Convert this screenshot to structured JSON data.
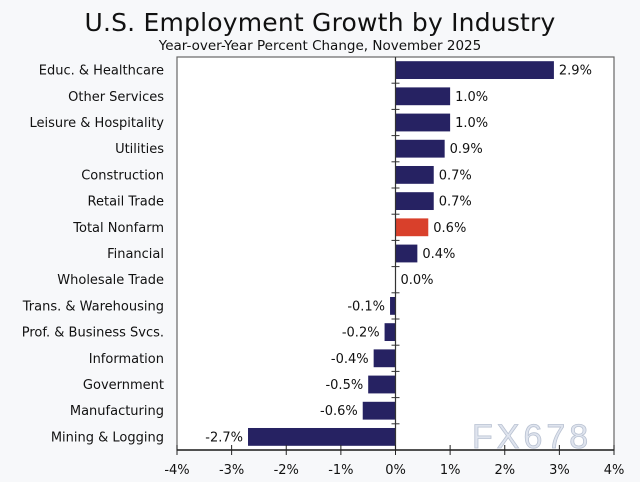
{
  "chart_data": {
    "type": "bar",
    "orientation": "horizontal",
    "title": "U.S. Employment Growth by Industry",
    "subtitle": "Year-over-Year Percent Change, November 2025",
    "xlabel": "",
    "ylabel": "",
    "xlim": [
      -4,
      4
    ],
    "x_ticks": [
      -4,
      -3,
      -2,
      -1,
      0,
      1,
      2,
      3,
      4
    ],
    "x_tick_labels": [
      "-4%",
      "-3%",
      "-2%",
      "-1%",
      "0%",
      "1%",
      "2%",
      "3%",
      "4%"
    ],
    "grid": false,
    "categories": [
      "Educ. & Healthcare",
      "Other Services",
      "Leisure & Hospitality",
      "Utilities",
      "Construction",
      "Retail Trade",
      "Total Nonfarm",
      "Financial",
      "Wholesale Trade",
      "Trans. & Warehousing",
      "Prof. & Business Svcs.",
      "Information",
      "Government",
      "Manufacturing",
      "Mining & Logging"
    ],
    "values": [
      2.9,
      1.0,
      1.0,
      0.9,
      0.7,
      0.7,
      0.6,
      0.4,
      0.0,
      -0.1,
      -0.2,
      -0.4,
      -0.5,
      -0.6,
      -2.7
    ],
    "value_labels": [
      "2.9%",
      "1.0%",
      "1.0%",
      "0.9%",
      "0.7%",
      "0.7%",
      "0.6%",
      "0.4%",
      "0.0%",
      "-0.1%",
      "-0.2%",
      "-0.4%",
      "-0.5%",
      "-0.6%",
      "-2.7%"
    ],
    "highlight_category": "Total Nonfarm",
    "colors": {
      "bar": "#262262",
      "highlight": "#d9402b",
      "axis": "#333333"
    },
    "watermark": "FX678"
  }
}
